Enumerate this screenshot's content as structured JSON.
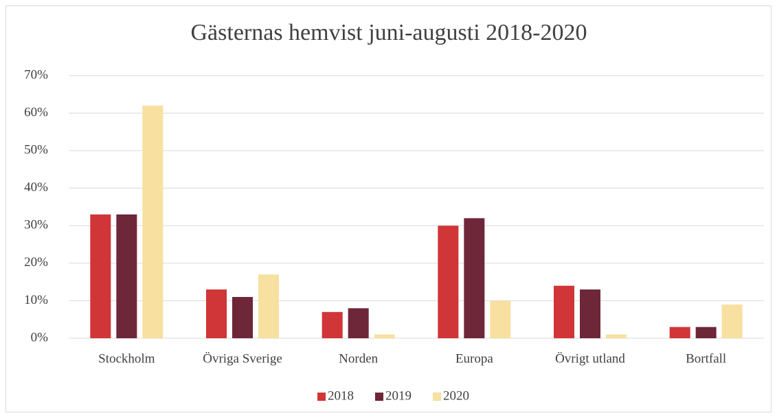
{
  "chart_data": {
    "type": "bar",
    "title": "Gästernas hemvist juni-augusti 2018-2020",
    "categories": [
      "Stockholm",
      "Övriga Sverige",
      "Norden",
      "Europa",
      "Övrigt utland",
      "Bortfall"
    ],
    "series": [
      {
        "name": "2018",
        "color": "#d03538",
        "values": [
          33,
          13,
          7,
          30,
          14,
          3
        ]
      },
      {
        "name": "2019",
        "color": "#6e2639",
        "values": [
          33,
          11,
          8,
          32,
          13,
          3
        ]
      },
      {
        "name": "2020",
        "color": "#f7e0a0",
        "values": [
          62,
          17,
          1,
          10,
          1,
          9
        ]
      }
    ],
    "ylim": [
      0,
      70
    ],
    "yticks": [
      {
        "value": 0,
        "label": "0%"
      },
      {
        "value": 10,
        "label": "10%"
      },
      {
        "value": 20,
        "label": "20%"
      },
      {
        "value": 30,
        "label": "30%"
      },
      {
        "value": 40,
        "label": "40%"
      },
      {
        "value": 50,
        "label": "50%"
      },
      {
        "value": 60,
        "label": "60%"
      },
      {
        "value": 70,
        "label": "70%"
      }
    ],
    "grid": true,
    "legend": "bottom"
  }
}
